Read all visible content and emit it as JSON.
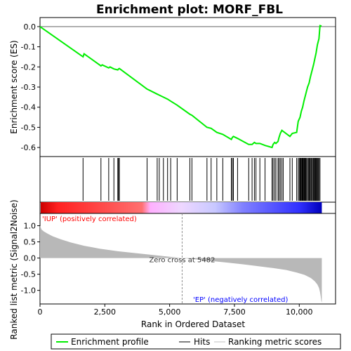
{
  "chart_data": {
    "type": "line",
    "title": "Enrichment plot: MORF_FBL",
    "es_panel": {
      "ylabel": "Enrichment score (ES)",
      "ylim": [
        -0.645,
        0.045
      ],
      "yticks": [
        0.0,
        -0.1,
        -0.2,
        -0.3,
        -0.4,
        -0.5,
        -0.6
      ],
      "ytick_labels": [
        "0.0",
        "-0.1",
        "-0.2",
        "-0.3",
        "-0.4",
        "-0.5",
        "-0.6"
      ],
      "series": [
        {
          "name": "Enrichment profile",
          "color": "#00ff00",
          "x": [
            0,
            1660,
            1700,
            2350,
            2400,
            2650,
            2700,
            2850,
            3000,
            3030,
            3060,
            4130,
            4520,
            4600,
            4760,
            4920,
            5040,
            5290,
            5780,
            5860,
            6440,
            6600,
            6820,
            7050,
            7380,
            7420,
            7460,
            7620,
            8050,
            8180,
            8270,
            8330,
            8480,
            8680,
            8950,
            8990,
            9050,
            9100,
            9180,
            9220,
            9270,
            9330,
            9380,
            9640,
            9730,
            9900,
            9960,
            10030,
            10080,
            10130,
            10180,
            10220,
            10260,
            10320,
            10380,
            10430,
            10490,
            10550,
            10600,
            10650,
            10700,
            10760,
            10800,
            10860
          ],
          "y": [
            0.0,
            -0.15,
            -0.135,
            -0.195,
            -0.19,
            -0.205,
            -0.2,
            -0.21,
            -0.215,
            -0.21,
            -0.208,
            -0.31,
            -0.335,
            -0.34,
            -0.35,
            -0.36,
            -0.37,
            -0.39,
            -0.435,
            -0.44,
            -0.5,
            -0.505,
            -0.525,
            -0.535,
            -0.56,
            -0.55,
            -0.545,
            -0.555,
            -0.585,
            -0.585,
            -0.575,
            -0.58,
            -0.58,
            -0.59,
            -0.6,
            -0.585,
            -0.575,
            -0.58,
            -0.57,
            -0.55,
            -0.53,
            -0.515,
            -0.52,
            -0.545,
            -0.53,
            -0.525,
            -0.47,
            -0.45,
            -0.42,
            -0.4,
            -0.37,
            -0.35,
            -0.33,
            -0.3,
            -0.28,
            -0.25,
            -0.22,
            -0.19,
            -0.16,
            -0.13,
            -0.09,
            -0.06,
            0.005,
            0.003
          ]
        }
      ]
    },
    "hits": [
      1660,
      2350,
      2650,
      2850,
      3000,
      3030,
      3060,
      4130,
      4520,
      4600,
      4760,
      4920,
      5040,
      5290,
      5780,
      5860,
      6440,
      6600,
      6820,
      7050,
      7380,
      7420,
      7460,
      7620,
      8050,
      8180,
      8270,
      8330,
      8480,
      8680,
      8950,
      8990,
      9050,
      9100,
      9180,
      9220,
      9270,
      9330,
      9380,
      9640,
      9730,
      9900,
      9960,
      10000,
      10030,
      10060,
      10080,
      10110,
      10130,
      10150,
      10180,
      10200,
      10220,
      10250,
      10280,
      10320,
      10350,
      10380,
      10410,
      10430,
      10470,
      10490,
      10530,
      10550,
      10580,
      10600,
      10630,
      10650,
      10680,
      10700,
      10730,
      10760,
      10800
    ],
    "rank_panel": {
      "ylabel": "Ranked list metric (Signal2Noise)",
      "ylim": [
        -1.42,
        1.38
      ],
      "yticks": [
        1.0,
        0.5,
        0.0,
        -0.5,
        -1.0
      ],
      "ytick_labels": [
        "1.0",
        "0.5",
        "0.0",
        "-0.5",
        "-1.0"
      ],
      "series": [
        {
          "name": "Ranking metric scores",
          "color": "#c0c0c0",
          "x": [
            0,
            60,
            150,
            300,
            500,
            800,
            1200,
            1700,
            2300,
            3000,
            3700,
            4400,
            5000,
            5482,
            6000,
            6600,
            7200,
            7800,
            8400,
            9000,
            9500,
            9900,
            10200,
            10450,
            10600,
            10700,
            10760,
            10800,
            10830,
            10850,
            10870
          ],
          "y": [
            1.0,
            0.88,
            0.82,
            0.75,
            0.67,
            0.58,
            0.48,
            0.38,
            0.29,
            0.21,
            0.15,
            0.09,
            0.04,
            0.0,
            -0.04,
            -0.09,
            -0.14,
            -0.19,
            -0.25,
            -0.31,
            -0.37,
            -0.45,
            -0.52,
            -0.62,
            -0.72,
            -0.82,
            -0.92,
            -1.05,
            -1.2,
            -1.32,
            -1.38
          ]
        }
      ],
      "zero_cross_label": "Zero cross at 5482",
      "zero_cross": 5482
    },
    "up_label": "'IUP' (positively correlated)",
    "ep_label": "'EP' (negatively correlated)",
    "xlabel": "Rank in Ordered Dataset",
    "xlim": [
      0,
      11400
    ],
    "xticks": [
      0,
      2500,
      5000,
      7500,
      10000
    ],
    "xtick_labels": [
      "0",
      "2,500",
      "5,000",
      "7,500",
      "10,000"
    ],
    "n_genes": 10870,
    "legend": {
      "placement": "bottom",
      "entries": [
        {
          "label": "Enrichment profile",
          "color": "#00ff00"
        },
        {
          "label": "Hits",
          "color": "#000000"
        },
        {
          "label": "Ranking metric scores",
          "color": "#c0c0c0"
        }
      ]
    },
    "colors": {
      "up_text": "#ff0000",
      "ep_text": "#0000ff",
      "heat_red": "#ff0000",
      "heat_blue": "#0000ff"
    }
  }
}
